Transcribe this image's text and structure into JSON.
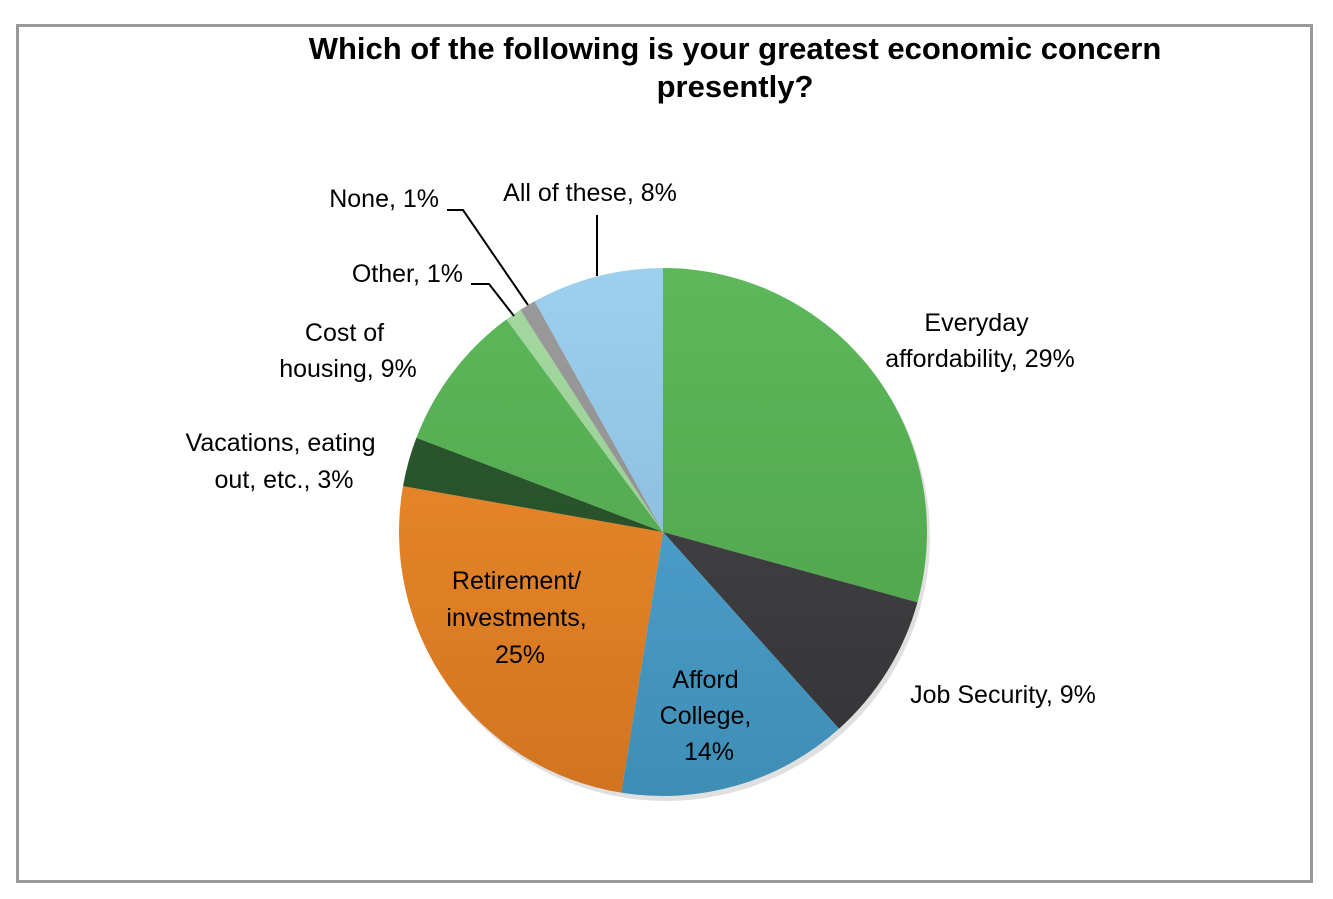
{
  "chart_data": {
    "type": "pie",
    "title": "Which of the following is your greatest economic concern presently?",
    "title_lines": [
      "Which of the following is your greatest economic concern",
      "presently?"
    ],
    "start_angle_deg": 0,
    "direction": "clockwise",
    "legend": "none",
    "slices": [
      {
        "name": "Everyday affordability",
        "value": 29,
        "color": "#4e9f4a",
        "color_light": "#5cb85a",
        "label_lines": [
          "Everyday",
          "affordability, 29%"
        ]
      },
      {
        "name": "Job Security",
        "value": 9,
        "color": "#333335",
        "color_light": "#4a4a4c",
        "label_lines": [
          "Job Security, 9%"
        ]
      },
      {
        "name": "Afford College",
        "value": 14,
        "color": "#3e8db5",
        "color_light": "#55acd8",
        "label_lines": [
          "Afford",
          "College,",
          "14%"
        ]
      },
      {
        "name": "Retirement/ investments",
        "value": 25,
        "color": "#d2741f",
        "color_light": "#f28f2f",
        "label_lines": [
          "Retirement/",
          "investments,",
          "25%"
        ]
      },
      {
        "name": "Vacations, eating out, etc.",
        "value": 3,
        "color": "#234a25",
        "color_light": "#2e5a30",
        "label_lines": [
          "Vacations, eating",
          "out, etc., 3%"
        ]
      },
      {
        "name": "Cost of housing",
        "value": 9,
        "color": "#4e9f4a",
        "color_light": "#5cb85a",
        "label_lines": [
          "Cost of",
          "housing, 9%"
        ]
      },
      {
        "name": "Other",
        "value": 1,
        "color": "#93c98f",
        "color_light": "#a4d8a0",
        "label_lines": [
          "Other, 1%"
        ]
      },
      {
        "name": "None",
        "value": 1,
        "color": "#8c8c8c",
        "color_light": "#9a9a9a",
        "label_lines": [
          "None, 1%"
        ]
      },
      {
        "name": "All of these",
        "value": 8,
        "color": "#7fafd4",
        "color_light": "#9dd0ef",
        "label_lines": [
          "All of these, 8%"
        ]
      }
    ]
  },
  "colors": {
    "frame_border": "#999999",
    "leader_line": "#000000",
    "text": "#000000"
  }
}
